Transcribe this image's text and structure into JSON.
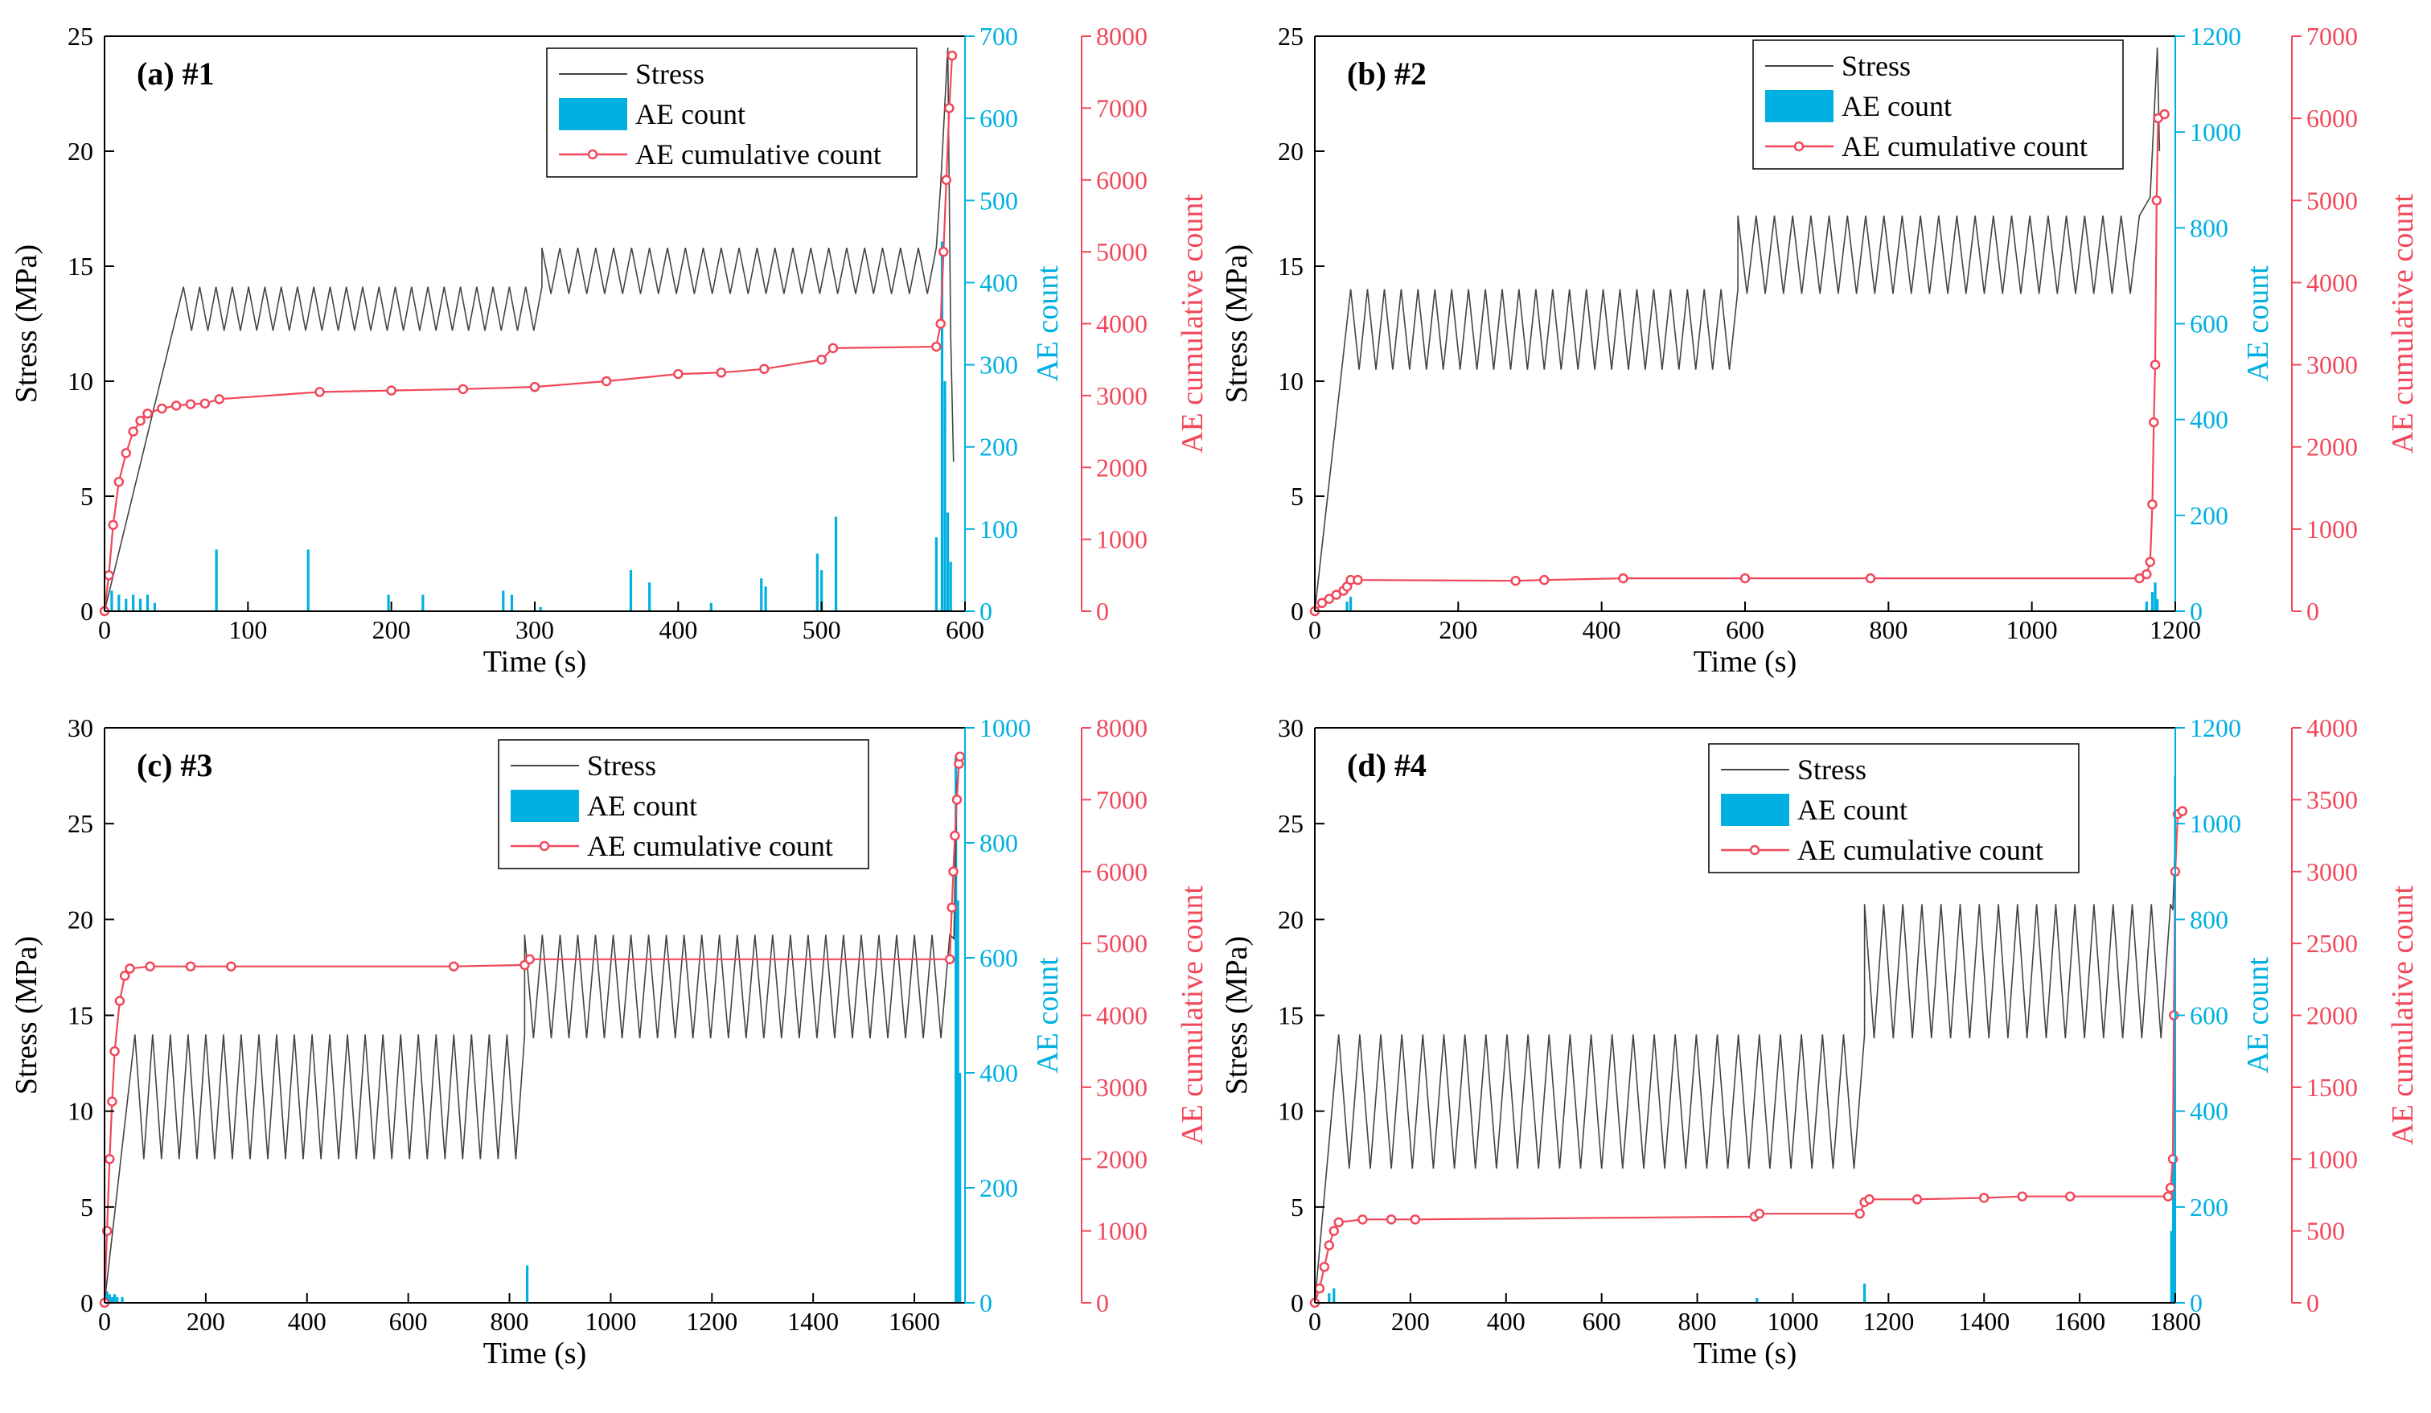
{
  "colors": {
    "stress": "#444444",
    "ae_count": "#00b0e0",
    "ae_cum": "#f0485a"
  },
  "legend": {
    "stress": "Stress",
    "ae_count": "AE count",
    "ae_cum": "AE cumulative count"
  },
  "axis_titles": {
    "x": "Time (s)",
    "y_stress": "Stress (MPa)",
    "y_count": "AE count",
    "y_cum": "AE cumulative count"
  },
  "chart_data": [
    {
      "type": "line",
      "panel": "(a) #1",
      "xlabel": "Time (s)",
      "xlim": [
        0,
        600
      ],
      "xticks": [
        0,
        100,
        200,
        300,
        400,
        500,
        600
      ],
      "stress_lim": [
        0,
        25
      ],
      "stress_ticks": [
        0,
        5,
        10,
        15,
        20,
        25
      ],
      "count_lim": [
        0,
        700
      ],
      "count_ticks": [
        0,
        100,
        200,
        300,
        400,
        500,
        600,
        700
      ],
      "cum_lim": [
        0,
        8000
      ],
      "cum_ticks": [
        0,
        1000,
        2000,
        3000,
        4000,
        5000,
        6000,
        7000,
        8000
      ],
      "stages": [
        {
          "t0": 55,
          "t1": 305,
          "lo": 12.2,
          "hi": 14.1,
          "n": 22
        },
        {
          "t0": 305,
          "t1": 580,
          "lo": 13.8,
          "hi": 15.8,
          "n": 22
        }
      ],
      "stress_end": [
        [
          583,
          18.5
        ],
        [
          588,
          24.5
        ],
        [
          590,
          12
        ],
        [
          592,
          6.5
        ]
      ],
      "cumulative": [
        [
          0,
          0
        ],
        [
          3,
          500
        ],
        [
          6,
          1200
        ],
        [
          10,
          1800
        ],
        [
          15,
          2200
        ],
        [
          20,
          2500
        ],
        [
          25,
          2650
        ],
        [
          30,
          2750
        ],
        [
          40,
          2820
        ],
        [
          50,
          2860
        ],
        [
          60,
          2880
        ],
        [
          70,
          2890
        ],
        [
          80,
          2950
        ],
        [
          150,
          3050
        ],
        [
          200,
          3070
        ],
        [
          250,
          3090
        ],
        [
          300,
          3120
        ],
        [
          350,
          3200
        ],
        [
          400,
          3300
        ],
        [
          430,
          3320
        ],
        [
          460,
          3370
        ],
        [
          500,
          3500
        ],
        [
          508,
          3660
        ],
        [
          580,
          3680
        ],
        [
          583,
          4000
        ],
        [
          585,
          5000
        ],
        [
          587,
          6000
        ],
        [
          589,
          7000
        ],
        [
          591,
          7730
        ]
      ],
      "count_spikes": [
        [
          5,
          25
        ],
        [
          10,
          20
        ],
        [
          15,
          15
        ],
        [
          20,
          20
        ],
        [
          25,
          15
        ],
        [
          30,
          20
        ],
        [
          35,
          10
        ],
        [
          78,
          75
        ],
        [
          142,
          75
        ],
        [
          198,
          20
        ],
        [
          222,
          20
        ],
        [
          278,
          25
        ],
        [
          284,
          20
        ],
        [
          304,
          5
        ],
        [
          367,
          50
        ],
        [
          380,
          35
        ],
        [
          423,
          10
        ],
        [
          458,
          40
        ],
        [
          461,
          30
        ],
        [
          497,
          70
        ],
        [
          500,
          50
        ],
        [
          510,
          115
        ],
        [
          580,
          90
        ],
        [
          584,
          450
        ],
        [
          586,
          280
        ],
        [
          588,
          120
        ],
        [
          590,
          60
        ]
      ]
    },
    {
      "type": "line",
      "panel": "(b) #2",
      "xlabel": "Time (s)",
      "xlim": [
        0,
        1200
      ],
      "xticks": [
        0,
        200,
        400,
        600,
        800,
        1000,
        1200
      ],
      "stress_lim": [
        0,
        25
      ],
      "stress_ticks": [
        0,
        5,
        10,
        15,
        20,
        25
      ],
      "count_lim": [
        0,
        1200
      ],
      "count_ticks": [
        0,
        200,
        400,
        600,
        800,
        1000,
        1200
      ],
      "cum_lim": [
        0,
        7000
      ],
      "cum_ticks": [
        0,
        1000,
        2000,
        3000,
        4000,
        5000,
        6000,
        7000
      ],
      "stages": [
        {
          "t0": 50,
          "t1": 590,
          "lo": 10.5,
          "hi": 14,
          "n": 23
        },
        {
          "t0": 590,
          "t1": 1150,
          "lo": 13.8,
          "hi": 17.2,
          "n": 22
        }
      ],
      "stress_end": [
        [
          1165,
          18
        ],
        [
          1175,
          24.5
        ],
        [
          1178,
          20
        ]
      ],
      "cumulative": [
        [
          0,
          0
        ],
        [
          10,
          100
        ],
        [
          20,
          150
        ],
        [
          30,
          200
        ],
        [
          40,
          250
        ],
        [
          45,
          300
        ],
        [
          50,
          380
        ],
        [
          60,
          380
        ],
        [
          280,
          370
        ],
        [
          320,
          380
        ],
        [
          430,
          400
        ],
        [
          600,
          400
        ],
        [
          775,
          400
        ],
        [
          1150,
          400
        ],
        [
          1160,
          450
        ],
        [
          1165,
          600
        ],
        [
          1168,
          1300
        ],
        [
          1170,
          2300
        ],
        [
          1172,
          3000
        ],
        [
          1174,
          5000
        ],
        [
          1176,
          6000
        ],
        [
          1185,
          6050
        ]
      ],
      "count_spikes": [
        [
          45,
          20
        ],
        [
          50,
          30
        ],
        [
          1160,
          20
        ],
        [
          1168,
          40
        ],
        [
          1172,
          60
        ],
        [
          1175,
          25
        ]
      ]
    },
    {
      "type": "line",
      "panel": "(c) #3",
      "xlabel": "Time (s)",
      "xlim": [
        0,
        1700
      ],
      "xticks": [
        0,
        200,
        400,
        600,
        800,
        1000,
        1200,
        1400,
        1600
      ],
      "stress_lim": [
        0,
        30
      ],
      "stress_ticks": [
        0,
        5,
        10,
        15,
        20,
        25,
        30
      ],
      "count_lim": [
        0,
        1000
      ],
      "count_ticks": [
        0,
        200,
        400,
        600,
        800,
        1000
      ],
      "cum_lim": [
        0,
        8000
      ],
      "cum_ticks": [
        0,
        1000,
        2000,
        3000,
        4000,
        5000,
        6000,
        7000,
        8000
      ],
      "stages": [
        {
          "t0": 60,
          "t1": 830,
          "lo": 7.5,
          "hi": 14,
          "n": 22
        },
        {
          "t0": 830,
          "t1": 1670,
          "lo": 13.8,
          "hi": 19.2,
          "n": 24
        }
      ],
      "stress_end": [
        [
          1678,
          19
        ],
        [
          1684,
          27
        ],
        [
          1688,
          28
        ]
      ],
      "cumulative": [
        [
          0,
          0
        ],
        [
          5,
          1000
        ],
        [
          10,
          2000
        ],
        [
          15,
          2800
        ],
        [
          20,
          3500
        ],
        [
          30,
          4200
        ],
        [
          40,
          4550
        ],
        [
          50,
          4650
        ],
        [
          90,
          4680
        ],
        [
          170,
          4680
        ],
        [
          250,
          4680
        ],
        [
          690,
          4680
        ],
        [
          830,
          4700
        ],
        [
          840,
          4780
        ],
        [
          1670,
          4780
        ],
        [
          1674,
          5500
        ],
        [
          1677,
          6000
        ],
        [
          1680,
          6500
        ],
        [
          1684,
          7000
        ],
        [
          1688,
          7500
        ],
        [
          1690,
          7600
        ]
      ],
      "count_spikes": [
        [
          5,
          20
        ],
        [
          10,
          15
        ],
        [
          15,
          10
        ],
        [
          20,
          15
        ],
        [
          25,
          10
        ],
        [
          35,
          10
        ],
        [
          835,
          65
        ],
        [
          1682,
          950
        ],
        [
          1686,
          700
        ],
        [
          1690,
          400
        ]
      ]
    },
    {
      "type": "line",
      "panel": "(d) #4",
      "xlabel": "Time (s)",
      "xlim": [
        0,
        1800
      ],
      "xticks": [
        0,
        200,
        400,
        600,
        800,
        1000,
        1200,
        1400,
        1600,
        1800
      ],
      "stress_lim": [
        0,
        30
      ],
      "stress_ticks": [
        0,
        5,
        10,
        15,
        20,
        25,
        30
      ],
      "count_lim": [
        0,
        1200
      ],
      "count_ticks": [
        0,
        200,
        400,
        600,
        800,
        1000,
        1200
      ],
      "cum_lim": [
        0,
        4000
      ],
      "cum_ticks": [
        0,
        500,
        1000,
        1500,
        2000,
        2500,
        3000,
        3500,
        4000
      ],
      "stages": [
        {
          "t0": 50,
          "t1": 1150,
          "lo": 7,
          "hi": 14,
          "n": 25
        },
        {
          "t0": 1150,
          "t1": 1790,
          "lo": 13.8,
          "hi": 20.8,
          "n": 16
        }
      ],
      "stress_end": [
        [
          1795,
          20.5
        ],
        [
          1800,
          24
        ]
      ],
      "cumulative": [
        [
          0,
          0
        ],
        [
          10,
          100
        ],
        [
          20,
          250
        ],
        [
          30,
          400
        ],
        [
          40,
          500
        ],
        [
          50,
          560
        ],
        [
          100,
          580
        ],
        [
          160,
          580
        ],
        [
          210,
          580
        ],
        [
          920,
          600
        ],
        [
          930,
          620
        ],
        [
          1140,
          620
        ],
        [
          1150,
          700
        ],
        [
          1160,
          720
        ],
        [
          1260,
          720
        ],
        [
          1400,
          730
        ],
        [
          1480,
          740
        ],
        [
          1580,
          740
        ],
        [
          1785,
          740
        ],
        [
          1790,
          800
        ],
        [
          1795,
          1000
        ],
        [
          1797,
          2000
        ],
        [
          1800,
          3000
        ],
        [
          1805,
          3400
        ],
        [
          1815,
          3420
        ]
      ],
      "count_spikes": [
        [
          30,
          20
        ],
        [
          40,
          30
        ],
        [
          925,
          10
        ],
        [
          1150,
          40
        ],
        [
          1792,
          150
        ],
        [
          1796,
          300
        ],
        [
          1800,
          1100
        ],
        [
          1803,
          700
        ]
      ]
    }
  ]
}
